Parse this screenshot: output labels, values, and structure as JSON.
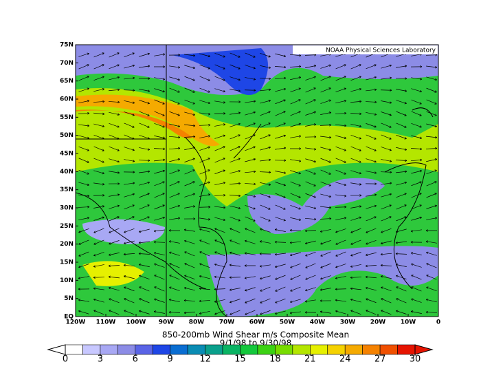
{
  "map": {
    "title": "850-200mb Wind Shear m/s Composite Mean",
    "subtitle": "9/1/98  to 9/30/98",
    "credit": "NOAA Physical Sciences Laboratory",
    "lat_labels": [
      "75N",
      "70N",
      "65N",
      "60N",
      "55N",
      "50N",
      "45N",
      "40N",
      "35N",
      "30N",
      "25N",
      "20N",
      "15N",
      "10N",
      "5N",
      "EQ"
    ],
    "lon_labels": [
      "120W",
      "110W",
      "100W",
      "90W",
      "80W",
      "70W",
      "60W",
      "50W",
      "40W",
      "30W",
      "20W",
      "10W",
      "0"
    ],
    "colorbar": {
      "range": [
        0,
        30
      ],
      "ticks": [
        0,
        3,
        6,
        9,
        12,
        15,
        18,
        21,
        24,
        27,
        30
      ],
      "colors": [
        "#ffffff",
        "#c8c8ff",
        "#a8a8f4",
        "#8c8ce6",
        "#5a64e6",
        "#1e46e6",
        "#0a6ed2",
        "#0a8cb4",
        "#0aa08c",
        "#0ab464",
        "#14c83c",
        "#3cd214",
        "#78dc00",
        "#b4e600",
        "#e6f000",
        "#f5d200",
        "#f5aa00",
        "#f58200",
        "#f05000",
        "#e61400"
      ]
    }
  }
}
